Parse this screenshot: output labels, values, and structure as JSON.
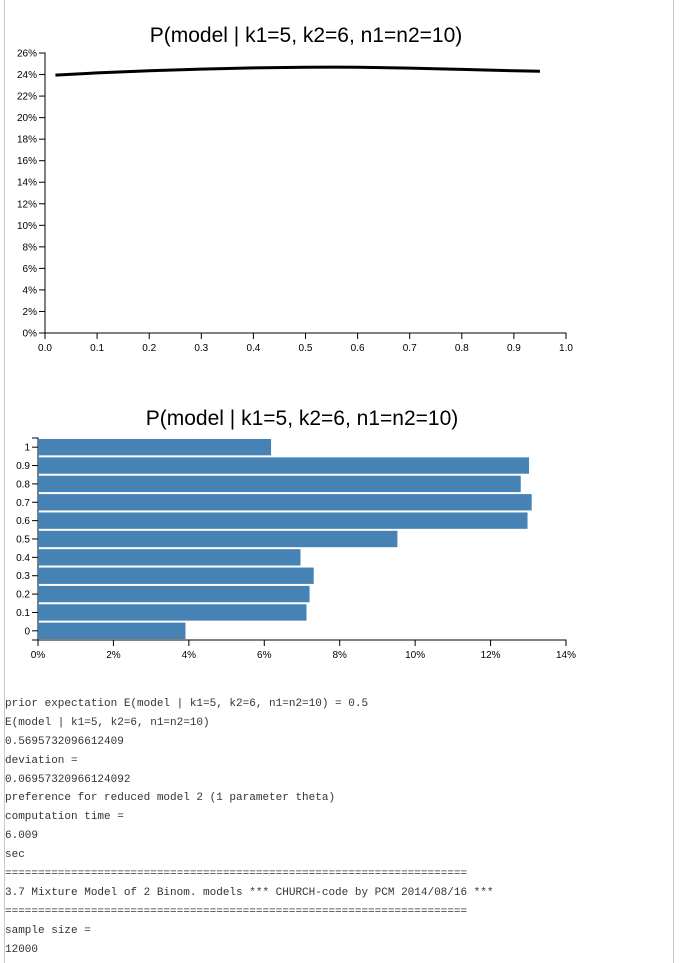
{
  "chart_data": [
    {
      "type": "line",
      "title": "P(model | k1=5, k2=6, n1=n2=10)",
      "xlim": [
        0,
        1
      ],
      "ylim": [
        0,
        0.26
      ],
      "x_ticks": [
        "0.0",
        "0.1",
        "0.2",
        "0.3",
        "0.4",
        "0.5",
        "0.6",
        "0.7",
        "0.8",
        "0.9",
        "1.0"
      ],
      "y_ticks": [
        "0%",
        "2%",
        "4%",
        "6%",
        "8%",
        "10%",
        "12%",
        "14%",
        "16%",
        "18%",
        "20%",
        "22%",
        "24%",
        "26%"
      ],
      "series": [
        {
          "color": "#000000",
          "points": [
            [
              0.02,
              0.2395
            ],
            [
              0.1,
              0.2415
            ],
            [
              0.2,
              0.2435
            ],
            [
              0.3,
              0.245
            ],
            [
              0.4,
              0.2462
            ],
            [
              0.5,
              0.2468
            ],
            [
              0.6,
              0.2468
            ],
            [
              0.7,
              0.246
            ],
            [
              0.8,
              0.2448
            ],
            [
              0.9,
              0.2435
            ],
            [
              0.95,
              0.243
            ]
          ]
        }
      ]
    },
    {
      "type": "bar",
      "orientation": "horizontal",
      "title": "P(model | k1=5, k2=6, n1=n2=10)",
      "categories": [
        "1",
        "0.9",
        "0.8",
        "0.7",
        "0.6",
        "0.5",
        "0.4",
        "0.3",
        "0.2",
        "0.1",
        "0"
      ],
      "values": [
        0.0618,
        0.1302,
        0.128,
        0.1309,
        0.1298,
        0.0953,
        0.0696,
        0.0731,
        0.072,
        0.0712,
        0.0391
      ],
      "xlim": [
        0,
        0.14
      ],
      "x_ticks": [
        "0%",
        "2%",
        "4%",
        "6%",
        "8%",
        "10%",
        "12%",
        "14%"
      ],
      "bar_color": "#4682b4"
    }
  ],
  "output_lines": [
    "prior expectation E(model | k1=5, k2=6, n1=n2=10) = 0.5",
    "E(model | k1=5, k2=6, n1=n2=10)",
    "0.5695732096612409",
    "deviation =",
    "0.06957320966124092",
    "preference for reduced model 2 (1 parameter theta)",
    "computation time =",
    "6.009",
    "sec",
    "======================================================================",
    "3.7 Mixture Model of 2 Binom. models *** CHURCH-code by PCM 2014/08/16 ***",
    "======================================================================",
    "sample size =",
    "12000"
  ]
}
